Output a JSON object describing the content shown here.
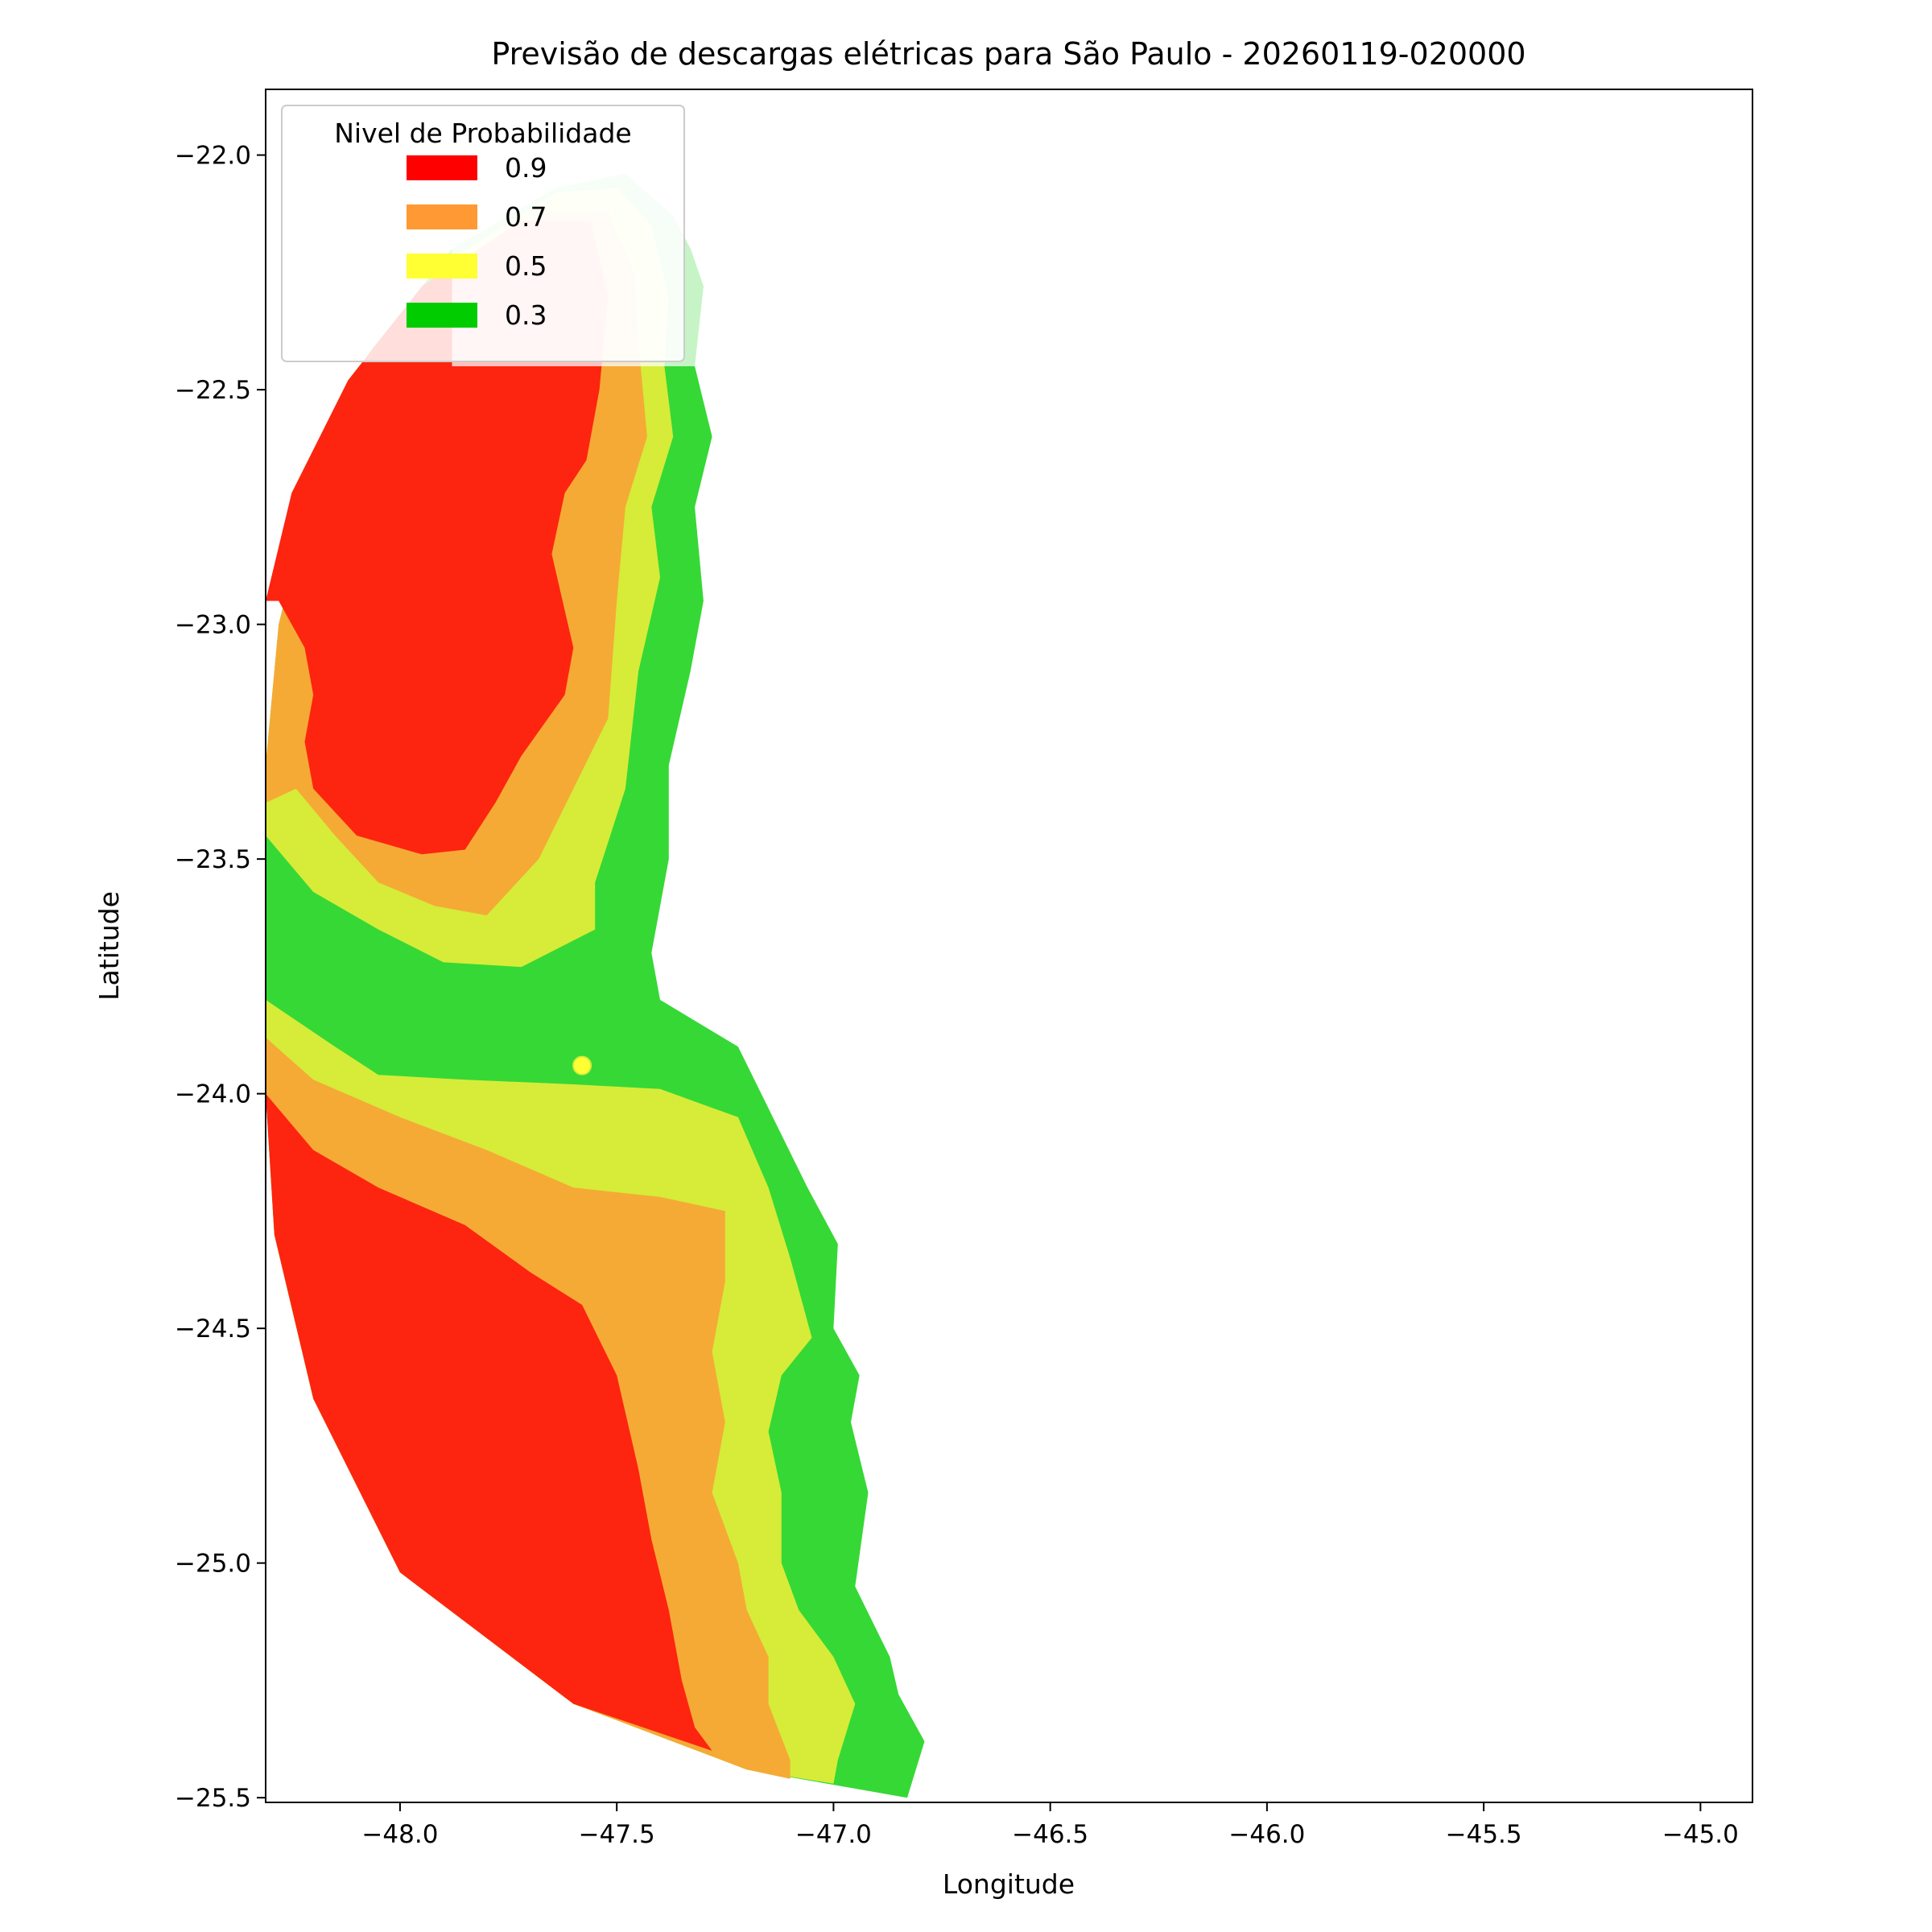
{
  "chart_data": {
    "type": "contour",
    "title": "Previsão de descargas elétricas para São Paulo - 20260119-020000",
    "xlabel": "Longitude",
    "ylabel": "Latitude",
    "xlim": [
      -48.31,
      -44.88
    ],
    "ylim": [
      -25.51,
      -21.86
    ],
    "xticks": [
      -48.0,
      -47.5,
      -47.0,
      -46.5,
      -46.0,
      -45.5,
      -45.0
    ],
    "xtick_labels": [
      "−48.0",
      "−47.5",
      "−47.0",
      "−46.5",
      "−46.0",
      "−45.5",
      "−45.0"
    ],
    "yticks": [
      -22.0,
      -22.5,
      -23.0,
      -23.5,
      -24.0,
      -24.5,
      -25.0,
      -25.5
    ],
    "ytick_labels": [
      "−22.0",
      "−22.5",
      "−23.0",
      "−23.5",
      "−24.0",
      "−24.5",
      "−25.0",
      "−25.5"
    ],
    "grid": false,
    "legend": {
      "title": "Nivel de Probabilidade",
      "placement": "upper-left",
      "entries": [
        {
          "label": "0.9",
          "color": "#ff0000"
        },
        {
          "label": "0.7",
          "color": "#ff9933"
        },
        {
          "label": "0.5",
          "color": "#ffff33"
        },
        {
          "label": "0.3",
          "color": "#00cc00"
        }
      ]
    },
    "regions": [
      {
        "level": "0.3",
        "color": "#36d836",
        "points": [
          [
            -48.31,
            -23.3
          ],
          [
            -48.28,
            -23.0
          ],
          [
            -48.2,
            -22.7
          ],
          [
            -48.07,
            -22.42
          ],
          [
            -47.88,
            -22.2
          ],
          [
            -47.64,
            -22.07
          ],
          [
            -47.48,
            -22.04
          ],
          [
            -47.37,
            -22.13
          ],
          [
            -47.33,
            -22.2
          ],
          [
            -47.3,
            -22.28
          ],
          [
            -47.32,
            -22.45
          ],
          [
            -47.28,
            -22.6
          ],
          [
            -47.32,
            -22.75
          ],
          [
            -47.3,
            -22.95
          ],
          [
            -47.33,
            -23.1
          ],
          [
            -47.38,
            -23.3
          ],
          [
            -47.38,
            -23.5
          ],
          [
            -47.42,
            -23.7
          ],
          [
            -47.4,
            -23.8
          ],
          [
            -47.22,
            -23.9
          ],
          [
            -47.14,
            -24.05
          ],
          [
            -47.06,
            -24.2
          ],
          [
            -46.99,
            -24.32
          ],
          [
            -47.0,
            -24.5
          ],
          [
            -46.94,
            -24.6
          ],
          [
            -46.96,
            -24.7
          ],
          [
            -46.92,
            -24.85
          ],
          [
            -46.95,
            -25.05
          ],
          [
            -46.87,
            -25.2
          ],
          [
            -46.85,
            -25.28
          ],
          [
            -46.79,
            -25.38
          ],
          [
            -46.83,
            -25.5
          ],
          [
            -47.2,
            -25.44
          ],
          [
            -47.6,
            -25.3
          ],
          [
            -48.0,
            -25.02
          ],
          [
            -48.2,
            -24.65
          ],
          [
            -48.29,
            -24.3
          ],
          [
            -48.31,
            -24.0
          ],
          [
            -48.31,
            -23.7
          ]
        ]
      },
      {
        "level": "0.5",
        "color": "#d6ec38",
        "points": [
          [
            -48.31,
            -23.3
          ],
          [
            -48.28,
            -23.0
          ],
          [
            -48.2,
            -22.72
          ],
          [
            -48.07,
            -22.45
          ],
          [
            -47.88,
            -22.22
          ],
          [
            -47.64,
            -22.08
          ],
          [
            -47.5,
            -22.07
          ],
          [
            -47.42,
            -22.15
          ],
          [
            -47.38,
            -22.3
          ],
          [
            -47.39,
            -22.45
          ],
          [
            -47.37,
            -22.6
          ],
          [
            -47.42,
            -22.75
          ],
          [
            -47.4,
            -22.9
          ],
          [
            -47.45,
            -23.1
          ],
          [
            -47.48,
            -23.35
          ],
          [
            -47.55,
            -23.55
          ],
          [
            -47.55,
            -23.65
          ],
          [
            -47.72,
            -23.73
          ],
          [
            -47.9,
            -23.72
          ],
          [
            -48.05,
            -23.65
          ],
          [
            -48.2,
            -23.57
          ],
          [
            -48.31,
            -23.45
          ]
        ]
      },
      {
        "level": "0.5",
        "color": "#d6ec38",
        "points": [
          [
            -48.31,
            -23.8
          ],
          [
            -48.15,
            -23.9
          ],
          [
            -48.05,
            -23.96
          ],
          [
            -47.85,
            -23.97
          ],
          [
            -47.6,
            -23.98
          ],
          [
            -47.4,
            -23.99
          ],
          [
            -47.22,
            -24.05
          ],
          [
            -47.15,
            -24.2
          ],
          [
            -47.1,
            -24.35
          ],
          [
            -47.05,
            -24.52
          ],
          [
            -47.12,
            -24.6
          ],
          [
            -47.15,
            -24.72
          ],
          [
            -47.12,
            -24.85
          ],
          [
            -47.12,
            -25.0
          ],
          [
            -47.08,
            -25.1
          ],
          [
            -47.0,
            -25.2
          ],
          [
            -46.95,
            -25.3
          ],
          [
            -46.99,
            -25.42
          ],
          [
            -47.0,
            -25.47
          ],
          [
            -47.2,
            -25.44
          ],
          [
            -47.6,
            -25.3
          ],
          [
            -48.0,
            -25.02
          ],
          [
            -48.2,
            -24.65
          ],
          [
            -48.29,
            -24.3
          ],
          [
            -48.31,
            -24.0
          ]
        ]
      },
      {
        "level": "0.7",
        "color": "#f5aa36",
        "points": [
          [
            -48.31,
            -23.3
          ],
          [
            -48.28,
            -23.0
          ],
          [
            -48.2,
            -22.72
          ],
          [
            -48.07,
            -22.46
          ],
          [
            -47.88,
            -22.24
          ],
          [
            -47.66,
            -22.12
          ],
          [
            -47.52,
            -22.12
          ],
          [
            -47.46,
            -22.25
          ],
          [
            -47.45,
            -22.4
          ],
          [
            -47.43,
            -22.6
          ],
          [
            -47.48,
            -22.75
          ],
          [
            -47.5,
            -22.95
          ],
          [
            -47.52,
            -23.2
          ],
          [
            -47.6,
            -23.35
          ],
          [
            -47.68,
            -23.5
          ],
          [
            -47.8,
            -23.62
          ],
          [
            -47.92,
            -23.6
          ],
          [
            -48.05,
            -23.55
          ],
          [
            -48.15,
            -23.45
          ],
          [
            -48.24,
            -23.35
          ],
          [
            -48.31,
            -23.38
          ]
        ]
      },
      {
        "level": "0.7",
        "color": "#f5aa36",
        "points": [
          [
            -48.31,
            -23.88
          ],
          [
            -48.2,
            -23.97
          ],
          [
            -48.0,
            -24.05
          ],
          [
            -47.8,
            -24.12
          ],
          [
            -47.6,
            -24.2
          ],
          [
            -47.4,
            -24.22
          ],
          [
            -47.25,
            -24.25
          ],
          [
            -47.25,
            -24.4
          ],
          [
            -47.28,
            -24.55
          ],
          [
            -47.25,
            -24.7
          ],
          [
            -47.28,
            -24.85
          ],
          [
            -47.22,
            -25.0
          ],
          [
            -47.2,
            -25.1
          ],
          [
            -47.15,
            -25.2
          ],
          [
            -47.15,
            -25.3
          ],
          [
            -47.1,
            -25.42
          ],
          [
            -47.1,
            -25.46
          ],
          [
            -47.2,
            -25.44
          ],
          [
            -47.6,
            -25.3
          ],
          [
            -48.0,
            -25.02
          ],
          [
            -48.2,
            -24.65
          ],
          [
            -48.29,
            -24.3
          ],
          [
            -48.31,
            -24.0
          ]
        ]
      },
      {
        "level": "0.9",
        "color": "#fd250f",
        "points": [
          [
            -48.31,
            -22.95
          ],
          [
            -48.25,
            -22.72
          ],
          [
            -48.12,
            -22.48
          ],
          [
            -47.95,
            -22.28
          ],
          [
            -47.72,
            -22.14
          ],
          [
            -47.56,
            -22.14
          ],
          [
            -47.52,
            -22.3
          ],
          [
            -47.54,
            -22.5
          ],
          [
            -47.57,
            -22.65
          ],
          [
            -47.62,
            -22.72
          ],
          [
            -47.65,
            -22.85
          ],
          [
            -47.6,
            -23.05
          ],
          [
            -47.62,
            -23.15
          ],
          [
            -47.72,
            -23.28
          ],
          [
            -47.78,
            -23.38
          ],
          [
            -47.85,
            -23.48
          ],
          [
            -47.95,
            -23.49
          ],
          [
            -48.1,
            -23.45
          ],
          [
            -48.2,
            -23.35
          ],
          [
            -48.22,
            -23.25
          ],
          [
            -48.2,
            -23.15
          ],
          [
            -48.22,
            -23.05
          ],
          [
            -48.28,
            -22.95
          ]
        ]
      },
      {
        "level": "0.9",
        "color": "#fd250f",
        "points": [
          [
            -48.31,
            -24.0
          ],
          [
            -48.2,
            -24.12
          ],
          [
            -48.05,
            -24.2
          ],
          [
            -47.85,
            -24.28
          ],
          [
            -47.7,
            -24.38
          ],
          [
            -47.58,
            -24.45
          ],
          [
            -47.5,
            -24.6
          ],
          [
            -47.45,
            -24.8
          ],
          [
            -47.42,
            -24.95
          ],
          [
            -47.38,
            -25.1
          ],
          [
            -47.35,
            -25.25
          ],
          [
            -47.32,
            -25.35
          ],
          [
            -47.28,
            -25.4
          ],
          [
            -47.6,
            -25.3
          ],
          [
            -48.0,
            -25.02
          ],
          [
            -48.2,
            -24.65
          ],
          [
            -48.29,
            -24.3
          ]
        ]
      },
      {
        "level": "overlay",
        "color": "#ffffff",
        "opacity": 0.72,
        "points": [
          [
            -47.88,
            -22.2
          ],
          [
            -47.64,
            -22.07
          ],
          [
            -47.48,
            -22.04
          ],
          [
            -47.37,
            -22.13
          ],
          [
            -47.33,
            -22.2
          ],
          [
            -47.3,
            -22.28
          ],
          [
            -47.3,
            -22.45
          ],
          [
            -47.88,
            -22.45
          ]
        ]
      }
    ],
    "markers": [
      {
        "type": "point",
        "x": -47.58,
        "y": -23.94,
        "color": "#ffff33"
      }
    ]
  }
}
